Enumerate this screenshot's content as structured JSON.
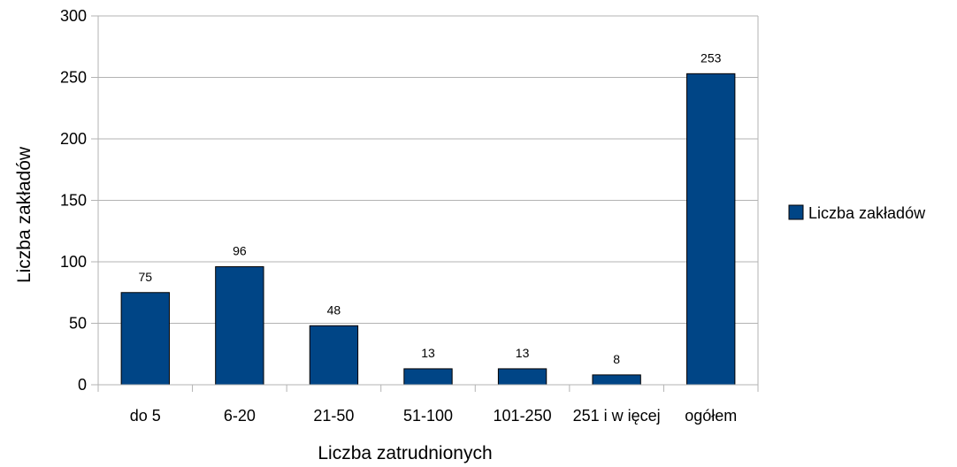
{
  "chart_data": {
    "type": "bar",
    "categories": [
      "do 5",
      "6-20",
      "21-50",
      "51-100",
      "101-250",
      "251 i w ięcej",
      "ogółem"
    ],
    "series": [
      {
        "name": "Liczba zakładów",
        "values": [
          75,
          96,
          48,
          13,
          13,
          8,
          253
        ],
        "data_labels": [
          "75",
          "96",
          "48",
          "13",
          "13",
          "8",
          "253"
        ],
        "color": "#004586"
      }
    ],
    "xlabel": "Liczba zatrudnionych",
    "ylabel": "Liczba  zakładów",
    "ylim": [
      0,
      300
    ],
    "yticks": [
      0,
      50,
      100,
      150,
      200,
      250,
      300
    ],
    "ytick_labels": [
      "0",
      "50",
      "100",
      "150",
      "200",
      "250",
      "300"
    ],
    "grid": true,
    "grid_color": "#b3b3b3",
    "bar_border_color": "#000000",
    "legend_position": "right"
  }
}
